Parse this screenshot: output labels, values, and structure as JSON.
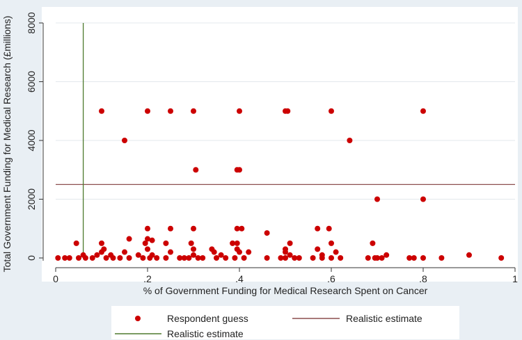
{
  "chart_data": {
    "type": "scatter",
    "xlabel": "% of Government Funding for Medical Research Spent on Cancer",
    "ylabel": "Total Government Funding for Medical Research (£millions)",
    "xlim": [
      0,
      1
    ],
    "ylim": [
      0,
      8000
    ],
    "x_ticks": [
      0,
      0.2,
      0.4,
      0.6,
      0.8,
      1
    ],
    "x_tick_labels": [
      "0",
      ".2",
      ".4",
      ".6",
      ".8",
      "1"
    ],
    "y_ticks": [
      0,
      2000,
      4000,
      6000,
      8000
    ],
    "y_tick_labels": [
      "0",
      "2000",
      "4000",
      "6000",
      "8000"
    ],
    "grid": "horizontal",
    "legend_placement": "bottom",
    "colors": {
      "points": "#cc0000",
      "horizontal_line": "#8c4f4f",
      "vertical_line": "#4e7a2e",
      "plot_background": "#ffffff",
      "outer_background": "#e9eff4",
      "grid": "#e3e8ec"
    },
    "series": [
      {
        "name": "Respondent guess",
        "kind": "points",
        "points": [
          [
            0.1,
            5000
          ],
          [
            0.2,
            5000
          ],
          [
            0.25,
            5000
          ],
          [
            0.3,
            5000
          ],
          [
            0.4,
            5000
          ],
          [
            0.5,
            5000
          ],
          [
            0.505,
            5000
          ],
          [
            0.6,
            5000
          ],
          [
            0.8,
            5000
          ],
          [
            0.15,
            4000
          ],
          [
            0.64,
            4000
          ],
          [
            0.305,
            3000
          ],
          [
            0.395,
            3000
          ],
          [
            0.4,
            3000
          ],
          [
            0.7,
            2000
          ],
          [
            0.8,
            2000
          ],
          [
            0.2,
            1000
          ],
          [
            0.25,
            1000
          ],
          [
            0.3,
            1000
          ],
          [
            0.395,
            1000
          ],
          [
            0.405,
            1000
          ],
          [
            0.57,
            1000
          ],
          [
            0.595,
            1000
          ],
          [
            0.46,
            850
          ],
          [
            0.16,
            650
          ],
          [
            0.2,
            650
          ],
          [
            0.21,
            600
          ],
          [
            0.045,
            500
          ],
          [
            0.1,
            500
          ],
          [
            0.195,
            500
          ],
          [
            0.24,
            500
          ],
          [
            0.295,
            500
          ],
          [
            0.385,
            500
          ],
          [
            0.395,
            500
          ],
          [
            0.51,
            500
          ],
          [
            0.6,
            500
          ],
          [
            0.69,
            500
          ],
          [
            0.105,
            300
          ],
          [
            0.2,
            300
          ],
          [
            0.3,
            300
          ],
          [
            0.34,
            300
          ],
          [
            0.395,
            300
          ],
          [
            0.5,
            300
          ],
          [
            0.57,
            300
          ],
          [
            0.1,
            200
          ],
          [
            0.15,
            200
          ],
          [
            0.25,
            200
          ],
          [
            0.345,
            200
          ],
          [
            0.4,
            200
          ],
          [
            0.42,
            200
          ],
          [
            0.5,
            200
          ],
          [
            0.61,
            200
          ],
          [
            0.06,
            100
          ],
          [
            0.09,
            100
          ],
          [
            0.12,
            100
          ],
          [
            0.18,
            100
          ],
          [
            0.21,
            100
          ],
          [
            0.3,
            100
          ],
          [
            0.36,
            100
          ],
          [
            0.51,
            100
          ],
          [
            0.58,
            100
          ],
          [
            0.72,
            100
          ],
          [
            0.9,
            100
          ],
          [
            0.005,
            0
          ],
          [
            0.02,
            0
          ],
          [
            0.03,
            0
          ],
          [
            0.05,
            0
          ],
          [
            0.065,
            0
          ],
          [
            0.08,
            0
          ],
          [
            0.11,
            0
          ],
          [
            0.125,
            0
          ],
          [
            0.14,
            0
          ],
          [
            0.16,
            0
          ],
          [
            0.19,
            0
          ],
          [
            0.205,
            0
          ],
          [
            0.22,
            0
          ],
          [
            0.24,
            0
          ],
          [
            0.27,
            0
          ],
          [
            0.28,
            0
          ],
          [
            0.29,
            0
          ],
          [
            0.31,
            0
          ],
          [
            0.32,
            0
          ],
          [
            0.35,
            0
          ],
          [
            0.37,
            0
          ],
          [
            0.39,
            0
          ],
          [
            0.41,
            0
          ],
          [
            0.46,
            0
          ],
          [
            0.49,
            0
          ],
          [
            0.5,
            0
          ],
          [
            0.52,
            0
          ],
          [
            0.53,
            0
          ],
          [
            0.56,
            0
          ],
          [
            0.58,
            0
          ],
          [
            0.6,
            0
          ],
          [
            0.62,
            0
          ],
          [
            0.68,
            0
          ],
          [
            0.695,
            0
          ],
          [
            0.7,
            0
          ],
          [
            0.71,
            0
          ],
          [
            0.77,
            0
          ],
          [
            0.78,
            0
          ],
          [
            0.8,
            0
          ],
          [
            0.84,
            0
          ],
          [
            0.97,
            0
          ]
        ]
      },
      {
        "name": "Realistic estimate",
        "kind": "hline",
        "y": 2500
      },
      {
        "name": "Realistic estimate",
        "kind": "vline",
        "x": 0.06
      }
    ]
  }
}
